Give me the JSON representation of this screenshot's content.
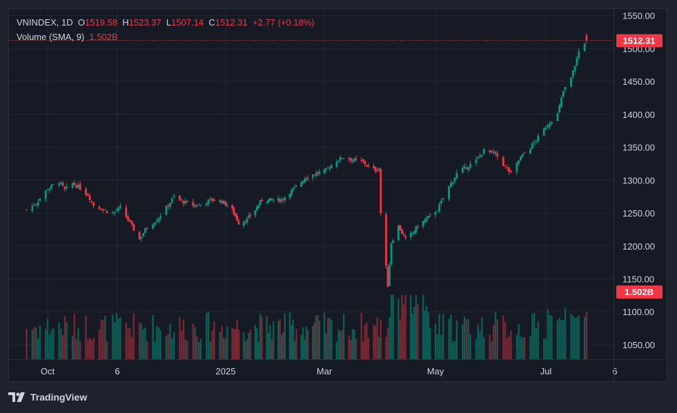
{
  "legend": {
    "symbol": "VNINDEX, 1D",
    "open_label": "O",
    "open": "1519.58",
    "high_label": "H",
    "high": "1523.37",
    "low_label": "L",
    "low": "1507.14",
    "close_label": "C",
    "close": "1512.31",
    "change": "+2.77 (+0.18%)",
    "volume_label": "Volume (SMA, 9)",
    "volume_value": "1.502B"
  },
  "price_tag": "1512.31",
  "volume_tag": "1.502B",
  "footer": {
    "brand": "TradingView"
  },
  "colors": {
    "up": "#089981",
    "down": "#f23645",
    "background": "#161a25",
    "grid": "#232733",
    "text": "#d1d4dc"
  },
  "chart_data": {
    "type": "candlestick",
    "symbol": "VNINDEX",
    "interval": "1D",
    "y_axis_ticks": [
      "1550.00",
      "1500.00",
      "1450.00",
      "1400.00",
      "1350.00",
      "1300.00",
      "1250.00",
      "1200.00",
      "1150.00",
      "1100.00",
      "1050.00"
    ],
    "y_range": [
      1028,
      1560
    ],
    "x_axis_ticks": [
      "Oct",
      "6",
      "2025",
      "Mar",
      "May",
      "Jul",
      "6"
    ],
    "grid": true,
    "close_path": [
      [
        "Sep 20",
        1255
      ],
      [
        "Sep 25",
        1265
      ],
      [
        "Oct 1",
        1287
      ],
      [
        "Oct 7",
        1298
      ],
      [
        "Oct 10",
        1285
      ],
      [
        "Oct 14",
        1295
      ],
      [
        "Oct 17",
        1290
      ],
      [
        "Oct 22",
        1278
      ],
      [
        "Oct 25",
        1262
      ],
      [
        "Oct 31",
        1254
      ],
      [
        "Nov 4",
        1250
      ],
      [
        "Nov 8",
        1258
      ],
      [
        "Nov 13",
        1235
      ],
      [
        "Nov 18",
        1210
      ],
      [
        "Nov 21",
        1225
      ],
      [
        "Nov 27",
        1240
      ],
      [
        "Dec 2",
        1258
      ],
      [
        "Dec 6",
        1275
      ],
      [
        "Dec 10",
        1268
      ],
      [
        "Dec 16",
        1262
      ],
      [
        "Dec 19",
        1262
      ],
      [
        "Dec 25",
        1270
      ],
      [
        "Dec 31",
        1268
      ],
      [
        "Jan 6",
        1255
      ],
      [
        "Jan 10",
        1235
      ],
      [
        "Jan 15",
        1240
      ],
      [
        "Jan 20",
        1255
      ],
      [
        "Jan 24",
        1270
      ],
      [
        "Feb 5",
        1270
      ],
      [
        "Feb 10",
        1282
      ],
      [
        "Feb 14",
        1290
      ],
      [
        "Feb 20",
        1305
      ],
      [
        "Feb 26",
        1310
      ],
      [
        "Mar 4",
        1315
      ],
      [
        "Mar 10",
        1330
      ],
      [
        "Mar 14",
        1335
      ],
      [
        "Mar 20",
        1330
      ],
      [
        "Mar 25",
        1328
      ],
      [
        "Mar 28",
        1320
      ],
      [
        "Apr 1",
        1315
      ],
      [
        "Apr 3",
        1318
      ],
      [
        "Apr 4",
        1250
      ],
      [
        "Apr 8",
        1140
      ],
      [
        "Apr 10",
        1205
      ],
      [
        "Apr 14",
        1230
      ],
      [
        "Apr 18",
        1210
      ],
      [
        "Apr 22",
        1220
      ],
      [
        "Apr 25",
        1230
      ],
      [
        "May 6",
        1255
      ],
      [
        "May 12",
        1290
      ],
      [
        "May 16",
        1310
      ],
      [
        "May 21",
        1320
      ],
      [
        "May 26",
        1330
      ],
      [
        "May 30",
        1345
      ],
      [
        "Jun 5",
        1340
      ],
      [
        "Jun 10",
        1320
      ],
      [
        "Jun 13",
        1310
      ],
      [
        "Jun 18",
        1335
      ],
      [
        "Jun 23",
        1350
      ],
      [
        "Jun 27",
        1365
      ],
      [
        "Jul 2",
        1385
      ],
      [
        "Jul 7",
        1400
      ],
      [
        "Jul 10",
        1435
      ],
      [
        "Jul 14",
        1455
      ],
      [
        "Jul 18",
        1495
      ],
      [
        "Jul 21",
        1509
      ],
      [
        "Jul 22",
        1512.31
      ]
    ],
    "last_candle": {
      "open": 1519.58,
      "high": 1523.37,
      "low": 1507.14,
      "close": 1512.31,
      "change": 2.77,
      "change_pct": 0.18
    },
    "volume_sma_9": 1.502
  }
}
